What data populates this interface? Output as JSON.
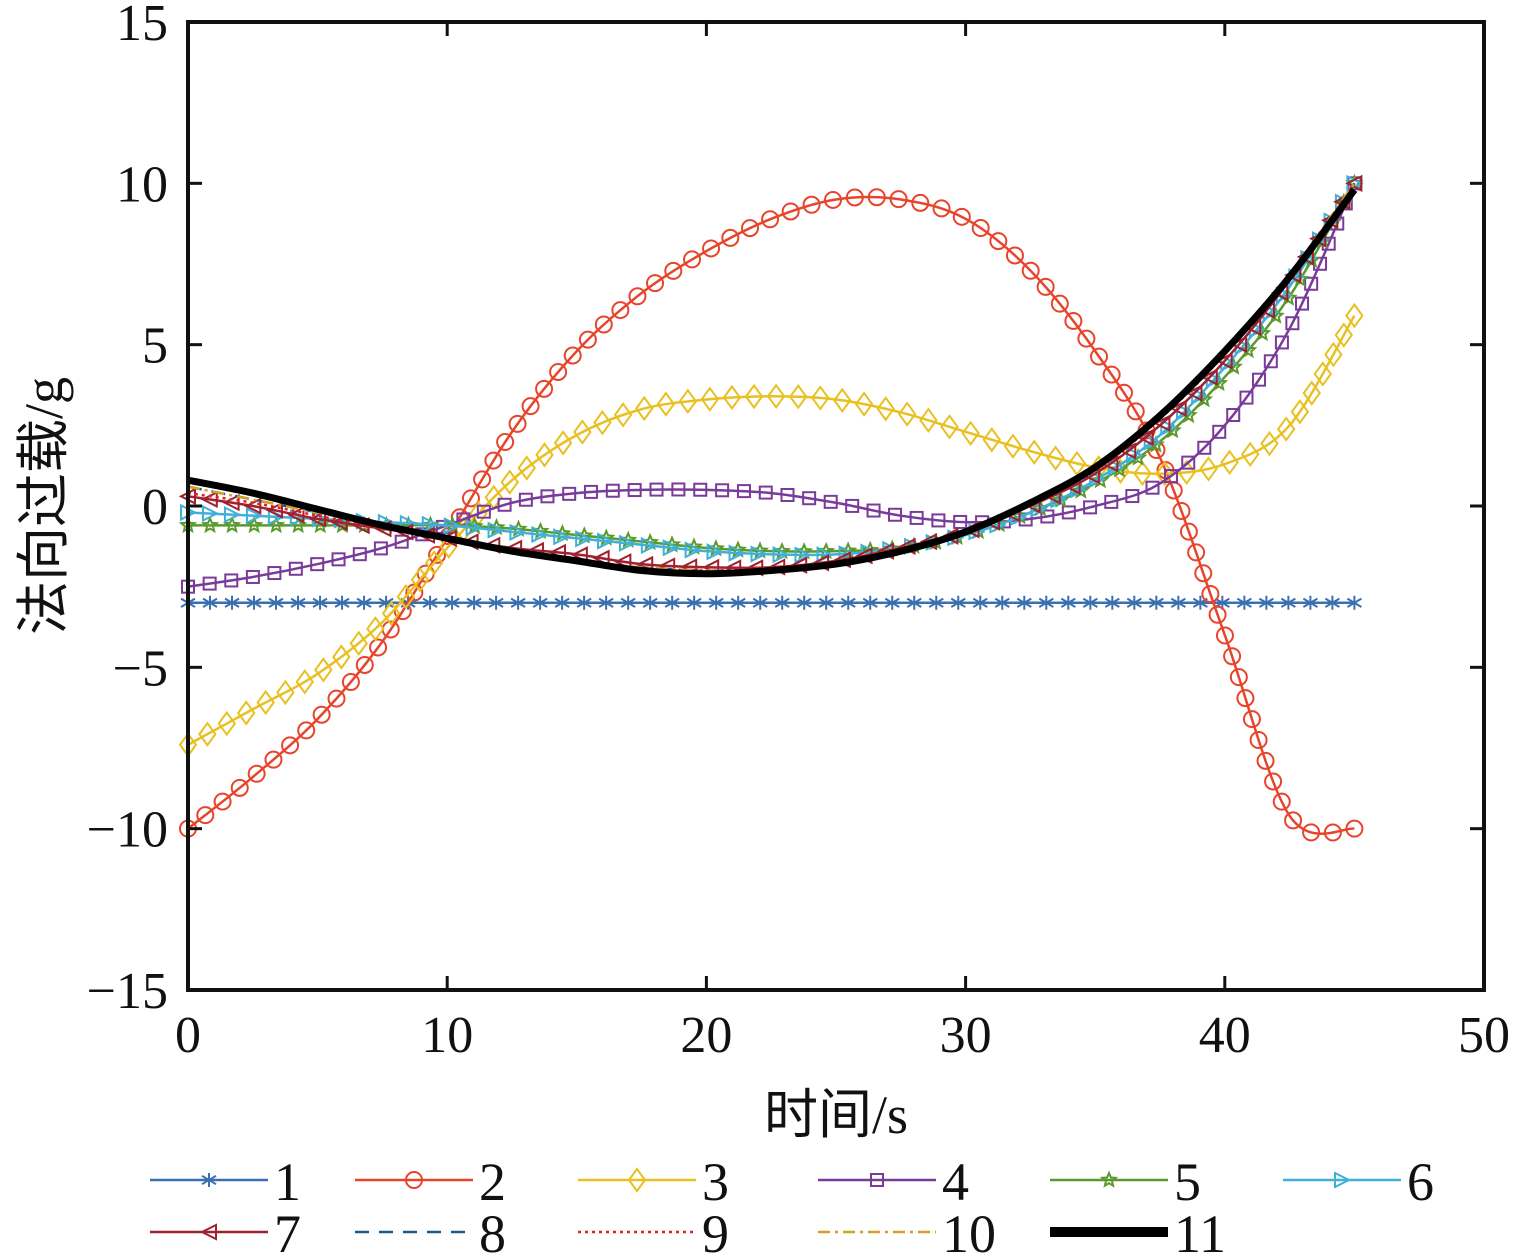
{
  "chart_data": {
    "type": "line",
    "xlabel": "时间/s",
    "ylabel": "法向过载/g",
    "xlim": [
      0,
      50
    ],
    "ylim": [
      -15,
      15
    ],
    "xticks": [
      "0",
      "10",
      "20",
      "30",
      "40",
      "50"
    ],
    "yticks": [
      "15",
      "10",
      "5",
      "0",
      "−5",
      "−10",
      "−15"
    ],
    "grid": false,
    "legend_position": "bottom",
    "x": [
      0,
      2.5,
      5,
      7.5,
      10,
      12.5,
      15,
      17.5,
      20,
      22.5,
      25,
      27.5,
      30,
      32.5,
      35,
      37.5,
      40,
      42.5,
      45
    ],
    "series": [
      {
        "name": "1",
        "color": "#3a6fb0",
        "marker": "asterisk",
        "dash": "solid",
        "values": [
          -3,
          -3,
          -3,
          -3,
          -3,
          -3,
          -3,
          -3,
          -3,
          -3,
          -3,
          -3,
          -3,
          -3,
          -3,
          -3,
          -3,
          -3,
          -3
        ]
      },
      {
        "name": "2",
        "color": "#e8442c",
        "marker": "circle",
        "dash": "solid",
        "values": [
          -10,
          -8.4,
          -6.6,
          -4.2,
          -1.0,
          2.3,
          4.8,
          6.6,
          7.9,
          8.9,
          9.5,
          9.5,
          8.9,
          7.3,
          4.8,
          1.5,
          -4.0,
          -9.6,
          -10
        ]
      },
      {
        "name": "3",
        "color": "#e8c020",
        "marker": "diamond",
        "dash": "solid",
        "values": [
          -7.4,
          -6.3,
          -5.2,
          -3.6,
          -1.3,
          0.8,
          2.2,
          3.0,
          3.3,
          3.4,
          3.3,
          2.9,
          2.3,
          1.7,
          1.2,
          1.0,
          1.3,
          2.5,
          5.9
        ]
      },
      {
        "name": "4",
        "color": "#7a3a9a",
        "marker": "square",
        "dash": "solid",
        "values": [
          -2.5,
          -2.2,
          -1.8,
          -1.3,
          -0.6,
          0.1,
          0.4,
          0.5,
          0.5,
          0.4,
          0.1,
          -0.3,
          -0.5,
          -0.4,
          0.0,
          0.7,
          2.5,
          5.5,
          10
        ]
      },
      {
        "name": "5",
        "color": "#5a9a2a",
        "marker": "star",
        "dash": "solid",
        "values": [
          -0.6,
          -0.6,
          -0.6,
          -0.6,
          -0.6,
          -0.7,
          -0.9,
          -1.1,
          -1.3,
          -1.4,
          -1.4,
          -1.3,
          -0.9,
          -0.2,
          0.7,
          2.0,
          4.0,
          6.5,
          10
        ]
      },
      {
        "name": "6",
        "color": "#40b0d8",
        "marker": "triangle-right",
        "dash": "solid",
        "values": [
          -0.2,
          -0.3,
          -0.4,
          -0.5,
          -0.6,
          -0.8,
          -1.0,
          -1.2,
          -1.4,
          -1.5,
          -1.5,
          -1.3,
          -0.9,
          -0.2,
          0.8,
          2.2,
          4.3,
          6.8,
          10
        ]
      },
      {
        "name": "7",
        "color": "#a02030",
        "marker": "triangle-left",
        "dash": "solid",
        "values": [
          0.3,
          0,
          -0.4,
          -0.7,
          -1.0,
          -1.3,
          -1.5,
          -1.8,
          -1.9,
          -1.9,
          -1.7,
          -1.3,
          -0.8,
          0,
          1.0,
          2.5,
          4.5,
          7.0,
          10
        ]
      },
      {
        "name": "8",
        "color": "#1a5a8a",
        "marker": "none",
        "dash": "dashed",
        "values": [
          0.6,
          0.2,
          -0.2,
          -0.6,
          -1.0,
          -1.4,
          -1.7,
          -1.9,
          -2.0,
          -2.0,
          -1.8,
          -1.4,
          -0.8,
          0.1,
          1.2,
          2.8,
          4.8,
          7.2,
          10
        ]
      },
      {
        "name": "9",
        "color": "#e02020",
        "marker": "none",
        "dash": "dotted",
        "values": [
          0.4,
          0.1,
          -0.3,
          -0.7,
          -1.0,
          -1.4,
          -1.7,
          -1.9,
          -2.0,
          -1.9,
          -1.7,
          -1.3,
          -0.8,
          0.1,
          1.1,
          2.7,
          4.7,
          7.1,
          10
        ]
      },
      {
        "name": "10",
        "color": "#d8a020",
        "marker": "none",
        "dash": "dashdot",
        "values": [
          0.6,
          0.2,
          -0.2,
          -0.6,
          -1.0,
          -1.4,
          -1.7,
          -1.9,
          -2.0,
          -2.0,
          -1.8,
          -1.4,
          -0.8,
          0.1,
          1.2,
          2.8,
          4.8,
          7.2,
          10
        ]
      },
      {
        "name": "11",
        "color": "#000000",
        "marker": "none",
        "dash": "thick",
        "values": [
          0.8,
          0.4,
          -0.1,
          -0.6,
          -1.0,
          -1.4,
          -1.7,
          -2.0,
          -2.1,
          -2.0,
          -1.8,
          -1.4,
          -0.8,
          0.1,
          1.2,
          2.8,
          4.8,
          7.1,
          9.8
        ]
      }
    ]
  }
}
